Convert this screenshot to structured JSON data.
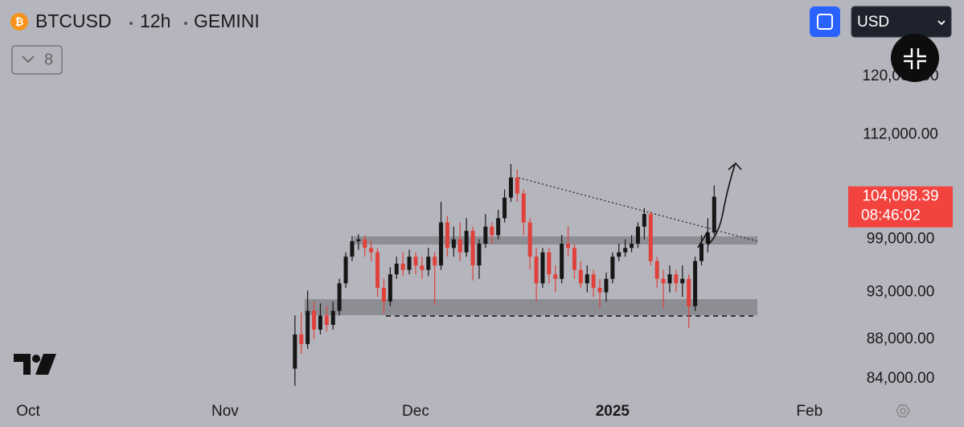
{
  "chart_data": {
    "type": "candlestick",
    "symbol": "BTCUSD",
    "interval": "12h",
    "exchange": "GEMINI",
    "indicator_count": 8,
    "currency": "USD",
    "countdown": "08:46:02",
    "log_scale": true,
    "up_color": "#161616",
    "down_color": "#e0413b",
    "x": [
      42,
      43,
      44,
      45,
      46,
      47,
      48,
      49,
      50,
      51,
      52,
      53,
      54,
      55,
      56,
      57,
      58,
      59,
      60,
      61,
      62,
      63,
      64,
      65,
      66,
      67,
      68,
      69,
      70,
      71,
      72,
      73,
      74,
      75,
      76,
      77,
      78,
      79,
      80,
      81,
      82,
      83,
      84,
      85,
      86,
      87,
      88,
      89,
      90,
      91,
      92,
      93,
      94,
      95,
      96,
      97,
      98,
      99,
      100,
      101,
      102,
      103,
      104,
      105,
      106,
      107,
      108
    ],
    "open": [
      85000,
      88500,
      87500,
      91000,
      89000,
      90500,
      89500,
      91000,
      94000,
      97000,
      98800,
      99000,
      98000,
      97500,
      93500,
      92000,
      95000,
      96200,
      95500,
      97000,
      96000,
      95500,
      97000,
      96000,
      101000,
      98000,
      99000,
      97500,
      100000,
      96000,
      98500,
      100500,
      99500,
      101500,
      104000,
      106500,
      104500,
      101000,
      97000,
      94000,
      97500,
      95000,
      94500,
      98500,
      98000,
      95500,
      94000,
      95000,
      93500,
      93000,
      94500,
      97000,
      97500,
      98000,
      98500,
      100500,
      102000,
      96500,
      94500,
      94000,
      95000,
      94000,
      94500,
      91500,
      96500,
      98500,
      99800
    ],
    "high": [
      90500,
      90800,
      93200,
      92000,
      91800,
      91500,
      92000,
      94500,
      97500,
      99400,
      99600,
      99500,
      98800,
      98000,
      94500,
      95800,
      97000,
      97500,
      97800,
      97500,
      97000,
      98000,
      97500,
      103500,
      101800,
      100500,
      101000,
      101500,
      100500,
      99000,
      102000,
      101000,
      102500,
      105000,
      108200,
      107500,
      105000,
      101500,
      98000,
      98000,
      98000,
      96000,
      99500,
      100500,
      98500,
      96500,
      96000,
      95500,
      94500,
      95200,
      97500,
      98500,
      99000,
      99500,
      101000,
      102700,
      102300,
      97000,
      95500,
      96000,
      95500,
      96000,
      95000,
      97000,
      99500,
      101500,
      105500
    ],
    "low": [
      83300,
      86500,
      87000,
      88000,
      88500,
      88800,
      89000,
      90500,
      93500,
      96500,
      97800,
      97000,
      96500,
      92500,
      90700,
      91500,
      94500,
      94800,
      95000,
      95000,
      94500,
      94800,
      91600,
      95500,
      97000,
      97000,
      96500,
      97000,
      94300,
      94500,
      98000,
      98500,
      99000,
      101000,
      103500,
      103500,
      99500,
      95500,
      92000,
      93500,
      94000,
      93000,
      94000,
      97000,
      94500,
      93500,
      93000,
      92500,
      91300,
      92000,
      94000,
      96500,
      97000,
      97500,
      98000,
      99000,
      96000,
      93500,
      91300,
      93000,
      93000,
      92500,
      89200,
      91000,
      96000,
      97500,
      99500
    ],
    "close": [
      88500,
      87500,
      91000,
      89000,
      90500,
      89500,
      91000,
      94000,
      97000,
      98800,
      99000,
      98000,
      97500,
      93500,
      92000,
      95000,
      96200,
      95500,
      97000,
      96000,
      95500,
      97000,
      96000,
      101000,
      98000,
      99000,
      97500,
      100000,
      96000,
      98500,
      100500,
      99500,
      101500,
      104000,
      106500,
      104500,
      101000,
      97000,
      94000,
      97500,
      95000,
      94500,
      98500,
      98000,
      95500,
      94000,
      95000,
      93500,
      93000,
      94500,
      97000,
      97500,
      98000,
      98500,
      100500,
      102000,
      96500,
      94500,
      94000,
      95000,
      94000,
      94500,
      91500,
      96500,
      98500,
      99800,
      104098.39
    ],
    "last_price": {
      "value": 104098.39,
      "label": "104,098.39"
    },
    "last_price_color": "#f2433f",
    "ylim": [
      82100,
      131300
    ],
    "yticks": [
      {
        "value": 120000,
        "label": "120,000.00"
      },
      {
        "value": 112000,
        "label": "112,000.00"
      },
      {
        "value": 99000,
        "label": "99,000.00"
      },
      {
        "value": 93000,
        "label": "93,000.00"
      },
      {
        "value": 88000,
        "label": "88,000.00"
      },
      {
        "value": 84000,
        "label": "84,000.00"
      }
    ],
    "xlim": [
      -4.43,
      129.1
    ],
    "xticks": [
      {
        "value": 0,
        "label": "Oct"
      },
      {
        "value": 31,
        "label": "Nov"
      },
      {
        "value": 61,
        "label": "Dec"
      },
      {
        "value": 92,
        "label": "2025"
      },
      {
        "value": 123,
        "label": "Feb"
      }
    ]
  }
}
